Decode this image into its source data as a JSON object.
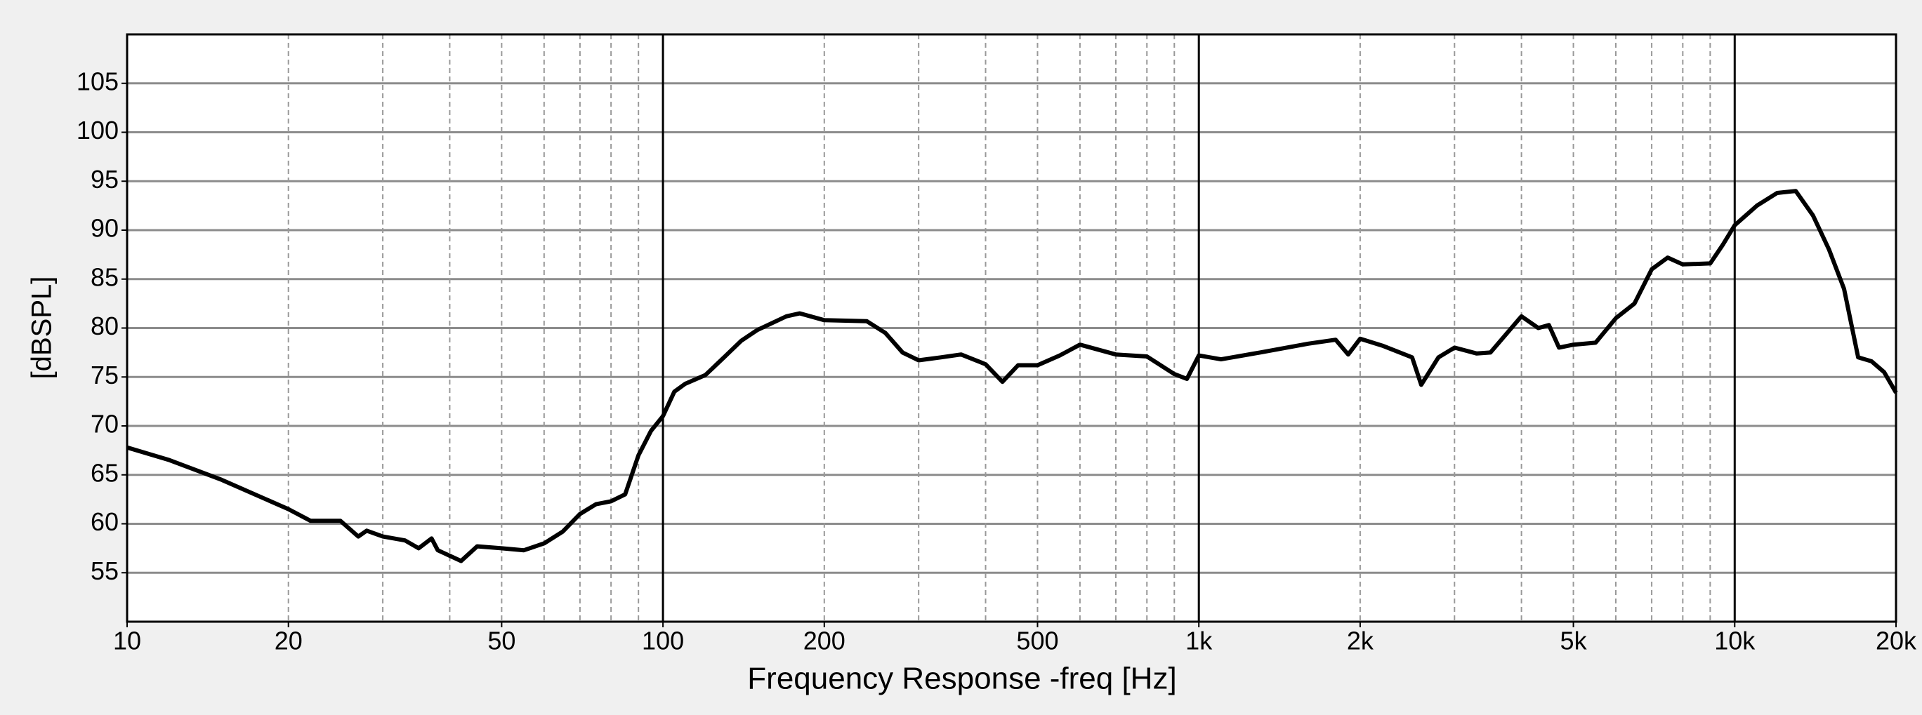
{
  "chart_data": {
    "type": "line",
    "xlabel": "Frequency Response -freq [Hz]",
    "ylabel": "[dBSPL]",
    "xscale": "log",
    "xlim": [
      10,
      20000
    ],
    "ylim": [
      50,
      110
    ],
    "xticks": [
      10,
      20,
      50,
      100,
      200,
      500,
      {
        "value": 1000,
        "label": "1k"
      },
      {
        "value": 2000,
        "label": "2k"
      },
      {
        "value": 5000,
        "label": "5k"
      },
      {
        "value": 10000,
        "label": "10k"
      },
      {
        "value": 20000,
        "label": "20k"
      }
    ],
    "yticks": [
      55,
      60,
      65,
      70,
      75,
      80,
      85,
      90,
      95,
      100,
      105
    ],
    "xgrid": [
      20,
      30,
      40,
      50,
      60,
      70,
      80,
      90,
      100,
      200,
      300,
      400,
      500,
      600,
      700,
      800,
      900,
      1000,
      2000,
      3000,
      4000,
      5000,
      6000,
      7000,
      8000,
      9000,
      10000
    ],
    "grid": true,
    "x": [
      10,
      12,
      15,
      20,
      22,
      25,
      27,
      28,
      30,
      33,
      35,
      37,
      38,
      42,
      45,
      50,
      55,
      60,
      65,
      70,
      75,
      80,
      85,
      90,
      95,
      100,
      105,
      110,
      120,
      130,
      140,
      150,
      170,
      180,
      200,
      240,
      260,
      280,
      300,
      330,
      360,
      400,
      430,
      460,
      500,
      550,
      600,
      700,
      800,
      900,
      950,
      1000,
      1100,
      1300,
      1600,
      1800,
      1900,
      2000,
      2200,
      2500,
      2600,
      2800,
      3000,
      3300,
      3500,
      4000,
      4300,
      4500,
      4700,
      5000,
      5500,
      6000,
      6500,
      7000,
      7500,
      8000,
      9000,
      9500,
      10000,
      11000,
      12000,
      13000,
      14000,
      15000,
      16000,
      17000,
      18000,
      19000,
      20000
    ],
    "series": [
      {
        "color": "#000000",
        "values": [
          67.8,
          66.5,
          64.5,
          61.5,
          60.3,
          60.3,
          58.7,
          59.3,
          58.7,
          58.3,
          57.5,
          58.5,
          57.3,
          56.2,
          57.7,
          57.5,
          57.3,
          58,
          59.2,
          61,
          62,
          62.3,
          63,
          67,
          69.5,
          71,
          73.5,
          74.3,
          75.2,
          77,
          78.7,
          79.8,
          81.2,
          81.5,
          80.8,
          80.7,
          79.5,
          77.5,
          76.7,
          77,
          77.3,
          76.3,
          74.5,
          76.2,
          76.2,
          77.2,
          78.3,
          77.3,
          77.1,
          75.3,
          74.8,
          77.2,
          76.8,
          77.5,
          78.4,
          78.8,
          77.3,
          78.9,
          78.2,
          77,
          74.2,
          77,
          78,
          77.4,
          77.5,
          81.2,
          80,
          80.3,
          78,
          78.3,
          78.5,
          81,
          82.5,
          86,
          87.2,
          86.5,
          86.6,
          88.5,
          90.5,
          92.5,
          93.8,
          94,
          91.5,
          88,
          84,
          77,
          76.6,
          75.5,
          73.4
        ]
      }
    ]
  }
}
